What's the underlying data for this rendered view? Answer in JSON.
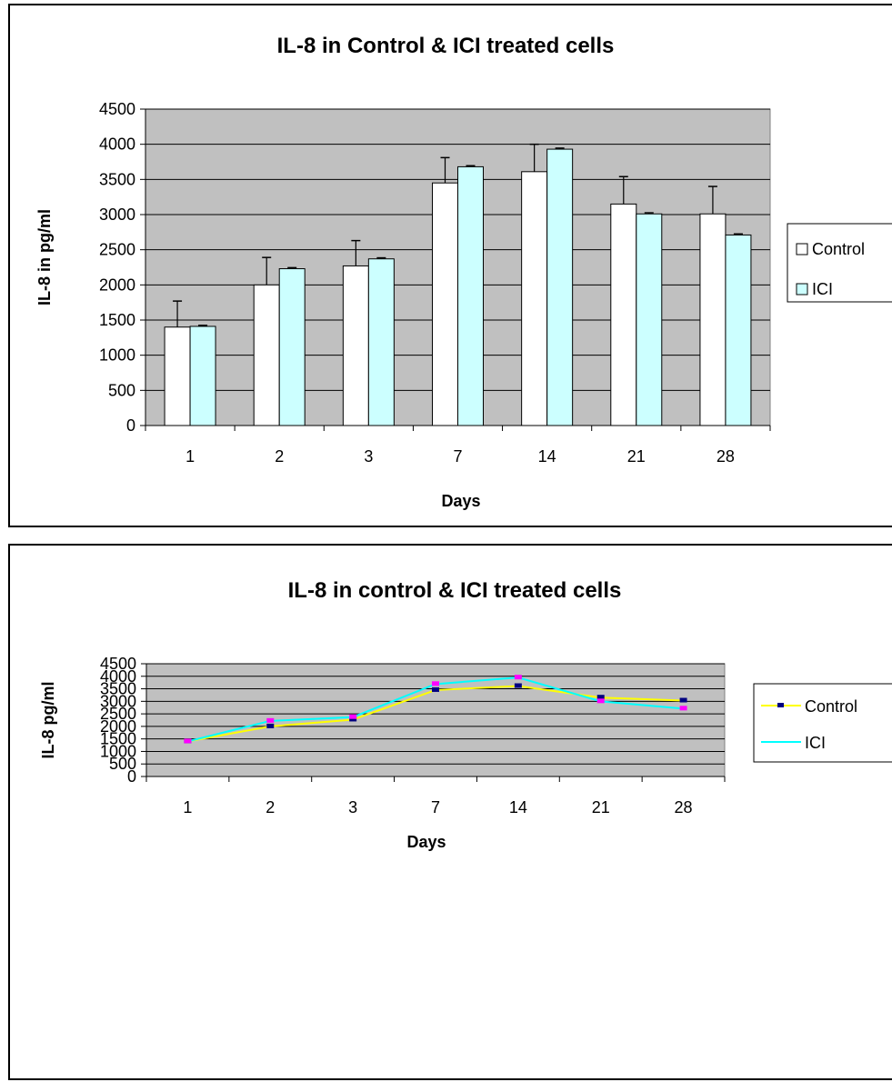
{
  "chart_data": [
    {
      "type": "bar",
      "title": "IL-8 in Control & ICI treated cells",
      "xlabel": "Days",
      "ylabel": "IL-8 in pg/ml",
      "categories": [
        "1",
        "2",
        "3",
        "7",
        "14",
        "21",
        "28"
      ],
      "ylim": [
        0,
        4500
      ],
      "yticks": [
        "0",
        "500",
        "1000",
        "1500",
        "2000",
        "2500",
        "3000",
        "3500",
        "4000",
        "4500"
      ],
      "grid": true,
      "legend": "right",
      "plot_background": "#c0c0c0",
      "series": [
        {
          "name": "Control",
          "color": "#ffffff",
          "values": [
            1400,
            2000,
            2270,
            3450,
            3610,
            3150,
            3010
          ],
          "error": [
            370,
            390,
            360,
            360,
            390,
            390,
            390
          ]
        },
        {
          "name": "ICI",
          "color": "#ccffff",
          "values": [
            1410,
            2230,
            2370,
            3680,
            3930,
            3010,
            2710
          ],
          "error": [
            15,
            15,
            15,
            15,
            15,
            15,
            15
          ]
        }
      ]
    },
    {
      "type": "line",
      "title": "IL-8 in control & ICI treated cells",
      "xlabel": "Days",
      "ylabel": "IL-8 pg/ml",
      "categories": [
        "1",
        "2",
        "3",
        "7",
        "14",
        "21",
        "28"
      ],
      "ylim": [
        0,
        4500
      ],
      "yticks": [
        "0",
        "500",
        "1000",
        "1500",
        "2000",
        "2500",
        "3000",
        "3500",
        "4000",
        "4500"
      ],
      "grid": true,
      "legend": "right",
      "plot_background": "#c0c0c0",
      "series": [
        {
          "name": "Control",
          "color": "#ffff00",
          "marker_color": "#000080",
          "values": [
            1400,
            2000,
            2270,
            3450,
            3610,
            3150,
            3030
          ]
        },
        {
          "name": "ICI",
          "color": "#00ffff",
          "marker_color": "#ff00ff",
          "values": [
            1400,
            2220,
            2370,
            3690,
            3950,
            3000,
            2710
          ]
        }
      ]
    }
  ]
}
